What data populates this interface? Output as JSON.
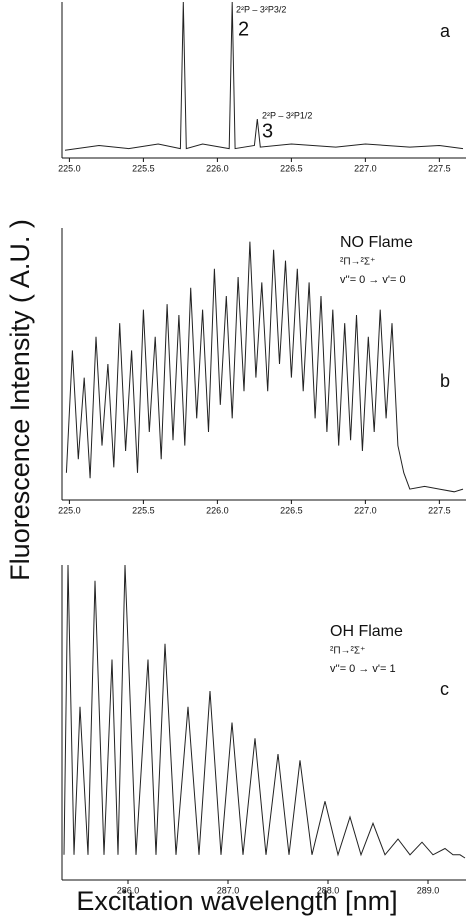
{
  "chart_data": [
    {
      "type": "line",
      "label": "a",
      "ylabel": "Fluorescence Intensity ( A.U. )",
      "color": "#222",
      "annotations": [
        "2²P – 3²P3/2",
        "2",
        "2²P – 3²P1/2",
        "3"
      ],
      "xlim": [
        224.95,
        227.68
      ],
      "ylim": [
        0,
        100
      ],
      "xticks": [
        {
          "value": 225,
          "label": "225.0"
        },
        225.5,
        {
          "value": 226,
          "label": "226.0"
        },
        226.5,
        {
          "value": 227,
          "label": "227.0"
        },
        227.5
      ],
      "x": [
        224.97,
        225.2,
        225.4,
        225.6,
        225.75,
        225.77,
        225.79,
        225.9,
        226.08,
        226.1,
        226.12,
        226.25,
        226.27,
        226.29,
        226.5,
        226.8,
        227.0,
        227.3,
        227.5,
        227.66
      ],
      "values": [
        5,
        8,
        6,
        9,
        6,
        100,
        6,
        9,
        6,
        100,
        6,
        8,
        25,
        7,
        9,
        7,
        9,
        7,
        8,
        6
      ]
    },
    {
      "type": "line",
      "label": "b",
      "color": "#222",
      "annotations": [
        "NO Flame",
        "²Π→²Σ⁺",
        "v''= 0 → v'= 0"
      ],
      "xlim": [
        224.95,
        227.68
      ],
      "ylim": [
        0,
        100
      ],
      "xticks": [
        {
          "value": 225,
          "label": "225.0"
        },
        225.5,
        {
          "value": 226,
          "label": "226.0"
        },
        226.5,
        {
          "value": 227,
          "label": "227.0"
        },
        227.5
      ],
      "x": [
        224.98,
        225.02,
        225.06,
        225.1,
        225.14,
        225.18,
        225.22,
        225.26,
        225.3,
        225.34,
        225.38,
        225.42,
        225.46,
        225.5,
        225.54,
        225.58,
        225.62,
        225.66,
        225.7,
        225.74,
        225.78,
        225.82,
        225.86,
        225.9,
        225.94,
        225.98,
        226.02,
        226.06,
        226.1,
        226.14,
        226.18,
        226.22,
        226.26,
        226.3,
        226.34,
        226.38,
        226.42,
        226.46,
        226.5,
        226.54,
        226.58,
        226.62,
        226.66,
        226.7,
        226.74,
        226.78,
        226.82,
        226.86,
        226.9,
        226.94,
        226.98,
        227.02,
        227.06,
        227.1,
        227.14,
        227.18,
        227.22,
        227.26,
        227.3,
        227.4,
        227.5,
        227.6,
        227.66
      ],
      "values": [
        10,
        55,
        15,
        45,
        8,
        60,
        20,
        50,
        12,
        65,
        18,
        55,
        10,
        70,
        25,
        60,
        15,
        72,
        22,
        68,
        20,
        78,
        30,
        70,
        25,
        85,
        35,
        75,
        30,
        82,
        40,
        95,
        45,
        80,
        40,
        92,
        50,
        88,
        45,
        85,
        40,
        80,
        30,
        75,
        25,
        70,
        20,
        65,
        22,
        68,
        18,
        60,
        25,
        70,
        30,
        65,
        20,
        10,
        4,
        5,
        4,
        3,
        4
      ]
    },
    {
      "type": "line",
      "label": "c",
      "xlabel": "Excitation wavelength [nm]",
      "color": "#222",
      "annotations": [
        "OH Flame",
        "²Π→²Σ⁺",
        "v''= 0 → v'= 1"
      ],
      "xlim": [
        285.34,
        289.38
      ],
      "ylim": [
        0,
        100
      ],
      "xticks": [
        {
          "value": 286,
          "label": "286.0"
        },
        {
          "value": 287,
          "label": "287.0"
        },
        {
          "value": 288,
          "label": "288.0"
        },
        {
          "value": 289,
          "label": "289.0"
        }
      ],
      "x": [
        285.36,
        285.4,
        285.46,
        285.52,
        285.6,
        285.67,
        285.76,
        285.84,
        285.9,
        285.97,
        286.08,
        286.2,
        286.28,
        286.37,
        286.48,
        286.6,
        286.71,
        286.82,
        286.93,
        287.04,
        287.15,
        287.27,
        287.38,
        287.5,
        287.61,
        287.72,
        287.84,
        287.97,
        288.1,
        288.22,
        288.33,
        288.45,
        288.57,
        288.7,
        288.82,
        288.94,
        289.05,
        289.17,
        289.25,
        289.32,
        289.37
      ],
      "values": [
        8,
        100,
        8,
        55,
        8,
        95,
        8,
        70,
        8,
        100,
        8,
        70,
        8,
        75,
        8,
        55,
        8,
        60,
        8,
        50,
        8,
        45,
        8,
        40,
        8,
        38,
        8,
        25,
        8,
        20,
        8,
        18,
        8,
        13,
        8,
        12,
        8,
        10,
        8,
        8,
        7
      ]
    }
  ]
}
